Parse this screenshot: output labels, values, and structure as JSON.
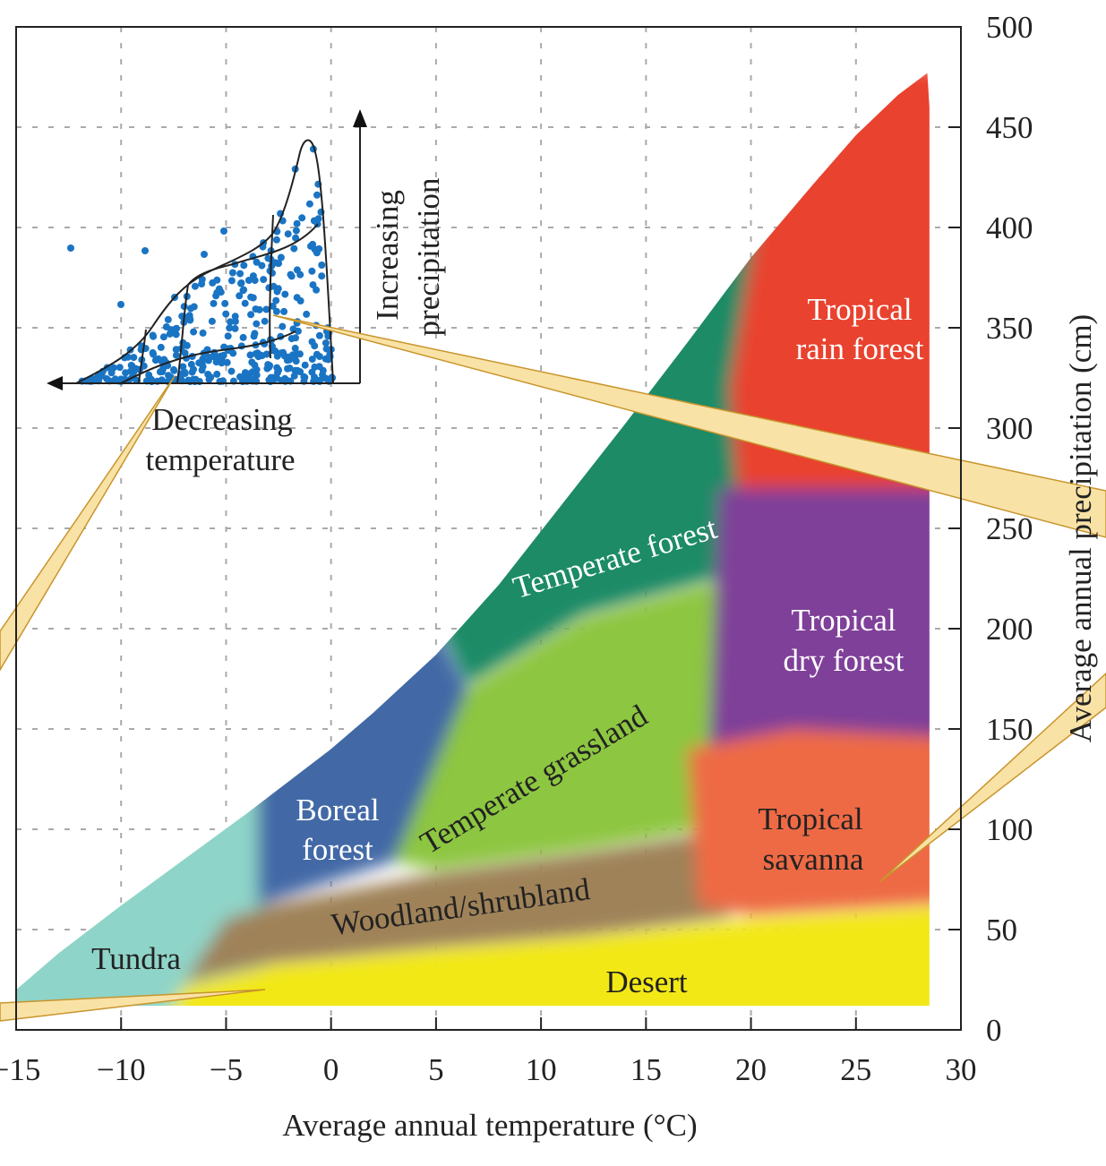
{
  "chart_data": {
    "type": "area",
    "title": "",
    "xlabel": "Average annual temperature (°C)",
    "ylabel": "Average annual precipitation (cm)",
    "xlim": [
      -15,
      30
    ],
    "ylim": [
      0,
      500
    ],
    "xticks": [
      -15,
      -10,
      -5,
      0,
      5,
      10,
      15,
      20,
      25,
      30
    ],
    "yticks": [
      0,
      50,
      100,
      150,
      200,
      250,
      300,
      350,
      400,
      450,
      500
    ],
    "grid": true,
    "envelope": [
      [
        -15,
        12
      ],
      [
        -15,
        20
      ],
      [
        -13,
        38
      ],
      [
        -10,
        62
      ],
      [
        -7,
        85
      ],
      [
        -4,
        108
      ],
      [
        -2,
        124
      ],
      [
        0,
        140
      ],
      [
        2,
        158
      ],
      [
        5,
        187
      ],
      [
        8,
        222
      ],
      [
        11,
        262
      ],
      [
        14,
        302
      ],
      [
        17,
        343
      ],
      [
        20,
        385
      ],
      [
        23,
        422
      ],
      [
        25,
        446
      ],
      [
        27,
        466
      ],
      [
        28.4,
        477
      ],
      [
        28.5,
        460
      ],
      [
        28.5,
        12
      ]
    ],
    "biomes": [
      {
        "name": "Tundra",
        "color": "#8fd4c8",
        "polygon": [
          [
            -16,
            5
          ],
          [
            -16,
            40
          ],
          [
            -10,
            80
          ],
          [
            -3,
            140
          ],
          [
            -3,
            5
          ]
        ]
      },
      {
        "name": "Desert",
        "color": "#f2e812",
        "polygon": [
          [
            -8,
            5
          ],
          [
            -7,
            22
          ],
          [
            -3,
            32
          ],
          [
            5,
            40
          ],
          [
            12,
            46
          ],
          [
            20,
            55
          ],
          [
            30,
            62
          ],
          [
            30,
            5
          ]
        ]
      },
      {
        "name": "Woodland/shrubland",
        "color": "#9f8258",
        "polygon": [
          [
            -7,
            24
          ],
          [
            -5,
            55
          ],
          [
            -3,
            62
          ],
          [
            5,
            78
          ],
          [
            12,
            88
          ],
          [
            18,
            98
          ],
          [
            19,
            56
          ],
          [
            12,
            47
          ],
          [
            5,
            41
          ],
          [
            -3,
            33
          ]
        ]
      },
      {
        "name": "Boreal forest",
        "color": "#4269a6",
        "polygon": [
          [
            -3.5,
            62
          ],
          [
            -3.5,
            150
          ],
          [
            0,
            170
          ],
          [
            5,
            200
          ],
          [
            6.5,
            170
          ],
          [
            3,
            84
          ]
        ]
      },
      {
        "name": "Temperate grassland",
        "color": "#8dc63f",
        "polygon": [
          [
            3,
            84
          ],
          [
            6.5,
            170
          ],
          [
            12,
            205
          ],
          [
            19,
            225
          ],
          [
            17.5,
            100
          ],
          [
            12,
            90
          ],
          [
            5,
            80
          ]
        ]
      },
      {
        "name": "Temperate forest",
        "color": "#1f8b66",
        "polygon": [
          [
            -1,
            140
          ],
          [
            5,
            205
          ],
          [
            6.5,
            172
          ],
          [
            12,
            207
          ],
          [
            19,
            227
          ],
          [
            20,
            330
          ],
          [
            22,
            440
          ],
          [
            10,
            440
          ],
          [
            -1,
            200
          ]
        ]
      },
      {
        "name": "Tropical rain forest",
        "color": "#e9422f",
        "polygon": [
          [
            19.5,
            250
          ],
          [
            19,
            320
          ],
          [
            21.5,
            480
          ],
          [
            31,
            480
          ],
          [
            31,
            250
          ]
        ]
      },
      {
        "name": "Tropical dry forest",
        "color": "#7f3f99",
        "polygon": [
          [
            18,
            140
          ],
          [
            18.5,
            270
          ],
          [
            31,
            270
          ],
          [
            31,
            140
          ]
        ]
      },
      {
        "name": "Tropical savanna",
        "color": "#ee6a45",
        "polygon": [
          [
            17.5,
            62
          ],
          [
            17,
            140
          ],
          [
            22,
            150
          ],
          [
            31,
            145
          ],
          [
            31,
            64
          ],
          [
            20,
            57
          ]
        ]
      }
    ],
    "labels": {
      "tropical": "Tropical",
      "rain_forest": "rain forest",
      "dry_forest": "dry forest",
      "savanna": "savanna",
      "temperate_forest": "Temperate forest",
      "temperate_grassland": "Temperate grassland",
      "boreal": "Boreal",
      "forest": "forest",
      "woodland": "Woodland/shrubland",
      "tundra": "Tundra",
      "desert": "Desert"
    },
    "inset": {
      "x_label_1": "Decreasing",
      "x_label_2": "temperature",
      "y_label_1": "Increasing",
      "y_label_2": "precipitation",
      "point_color": "#1a74c4"
    }
  }
}
